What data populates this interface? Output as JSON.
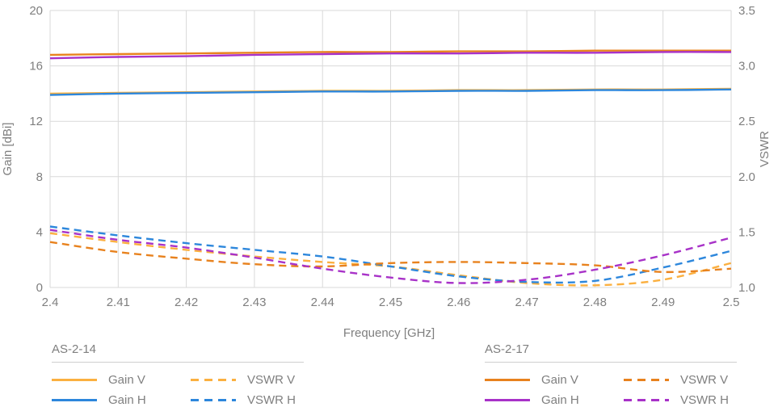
{
  "chart": {
    "y_left": {
      "label": "Gain [dBi]",
      "tick_labels": [
        "20",
        "16",
        "12",
        "8",
        "4",
        "0"
      ],
      "min": 0,
      "max": 20
    },
    "y_right": {
      "label": "VSWR",
      "tick_labels": [
        "3.5",
        "3.0",
        "2.5",
        "2.0",
        "1.5",
        "1.0"
      ],
      "min": 1.0,
      "max": 3.5
    },
    "x_axis": {
      "label": "Frequency [GHz]",
      "tick_labels": [
        "2.4",
        "2.41",
        "2.42",
        "2.43",
        "2.44",
        "2.45",
        "2.46",
        "2.47",
        "2.48",
        "2.49",
        "2.5"
      ],
      "min": 2.4,
      "max": 2.5
    },
    "grid_color": "#d9d9d9",
    "text_color": "#7f7f7f"
  },
  "chart_data": {
    "type": "line",
    "x": [
      2.4,
      2.41,
      2.42,
      2.43,
      2.44,
      2.45,
      2.46,
      2.47,
      2.48,
      2.49,
      2.5
    ],
    "x_min": 2.4,
    "x_max": 2.5,
    "grid": true,
    "legend_position": "bottom",
    "series": [
      {
        "name": "AS-2-14 Gain V",
        "axis": "left",
        "unit": "dBi",
        "dash": false,
        "color": "#fbb040",
        "values": [
          14.0,
          14.05,
          14.1,
          14.15,
          14.2,
          14.2,
          14.25,
          14.25,
          14.3,
          14.3,
          14.35
        ]
      },
      {
        "name": "AS-2-14 Gain H",
        "axis": "left",
        "unit": "dBi",
        "dash": false,
        "color": "#2d87dc",
        "values": [
          13.9,
          14.0,
          14.05,
          14.1,
          14.15,
          14.15,
          14.2,
          14.2,
          14.25,
          14.25,
          14.3
        ]
      },
      {
        "name": "AS-2-17 Gain V",
        "axis": "left",
        "unit": "dBi",
        "dash": false,
        "color": "#e8821e",
        "values": [
          16.8,
          16.85,
          16.9,
          16.95,
          17.0,
          17.0,
          17.05,
          17.05,
          17.1,
          17.1,
          17.1
        ]
      },
      {
        "name": "AS-2-17 Gain H",
        "axis": "left",
        "unit": "dBi",
        "dash": false,
        "color": "#a832c8",
        "values": [
          16.55,
          16.65,
          16.7,
          16.8,
          16.85,
          16.9,
          16.9,
          16.95,
          16.95,
          17.0,
          17.0
        ]
      },
      {
        "name": "AS-2-14 VSWR V",
        "axis": "right",
        "unit": "VSWR",
        "dash": true,
        "color": "#fbb040",
        "values": [
          1.49,
          1.41,
          1.34,
          1.28,
          1.23,
          1.19,
          1.11,
          1.04,
          1.02,
          1.07,
          1.22
        ]
      },
      {
        "name": "AS-2-14 VSWR H",
        "axis": "right",
        "unit": "VSWR",
        "dash": true,
        "color": "#2d87dc",
        "values": [
          1.55,
          1.47,
          1.4,
          1.34,
          1.28,
          1.19,
          1.1,
          1.05,
          1.06,
          1.18,
          1.33
        ]
      },
      {
        "name": "AS-2-17 VSWR V",
        "axis": "right",
        "unit": "VSWR",
        "dash": true,
        "color": "#e8821e",
        "values": [
          1.41,
          1.32,
          1.26,
          1.21,
          1.19,
          1.22,
          1.23,
          1.22,
          1.2,
          1.14,
          1.17
        ]
      },
      {
        "name": "AS-2-17 VSWR H",
        "axis": "right",
        "unit": "VSWR",
        "dash": true,
        "color": "#a832c8",
        "values": [
          1.52,
          1.43,
          1.36,
          1.27,
          1.17,
          1.09,
          1.04,
          1.07,
          1.16,
          1.29,
          1.45
        ]
      }
    ]
  },
  "legend": {
    "groups": [
      {
        "title": "AS-2-14",
        "items": [
          {
            "label": "Gain V",
            "color": "#fbb040",
            "dash": false
          },
          {
            "label": "VSWR V",
            "color": "#fbb040",
            "dash": true
          },
          {
            "label": "Gain H",
            "color": "#2d87dc",
            "dash": false
          },
          {
            "label": "VSWR H",
            "color": "#2d87dc",
            "dash": true
          }
        ]
      },
      {
        "title": "AS-2-17",
        "items": [
          {
            "label": "Gain V",
            "color": "#e8821e",
            "dash": false
          },
          {
            "label": "VSWR V",
            "color": "#e8821e",
            "dash": true
          },
          {
            "label": "Gain H",
            "color": "#a832c8",
            "dash": false
          },
          {
            "label": "VSWR H",
            "color": "#a832c8",
            "dash": true
          }
        ]
      }
    ]
  }
}
